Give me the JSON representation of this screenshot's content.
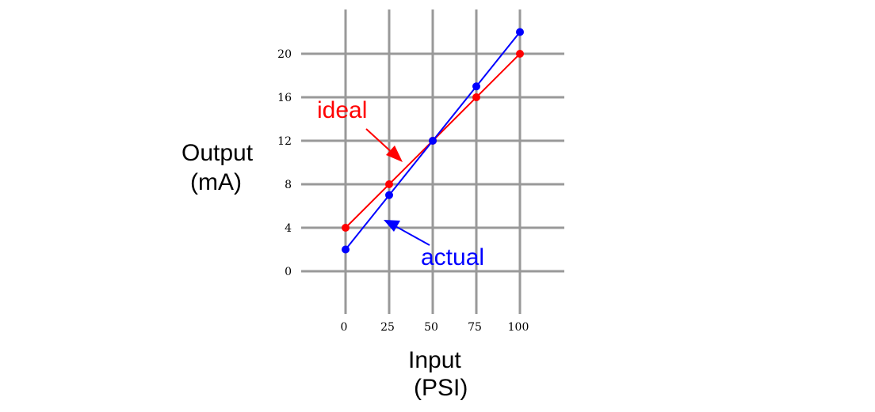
{
  "chart_data": {
    "type": "line",
    "x_ticks": [
      0,
      25,
      50,
      75,
      100
    ],
    "y_ticks": [
      0,
      4,
      8,
      12,
      16,
      20
    ],
    "xlim": [
      0,
      100
    ],
    "ylim": [
      0,
      20
    ],
    "grid": true,
    "xlabel": "Input",
    "xlabel_unit": "(PSI)",
    "ylabel": "Output",
    "ylabel_unit": "(mA)",
    "series": [
      {
        "name": "ideal",
        "color": "#ff0000",
        "x": [
          0,
          25,
          50,
          75,
          100
        ],
        "y": [
          4,
          8,
          12,
          16,
          20
        ]
      },
      {
        "name": "actual",
        "color": "#0000ff",
        "x": [
          0,
          25,
          50,
          75,
          100
        ],
        "y": [
          2,
          7,
          12,
          17,
          22
        ]
      }
    ],
    "grid_color": "#999999"
  }
}
